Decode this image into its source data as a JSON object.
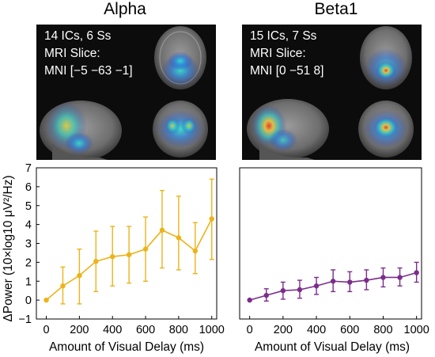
{
  "panels": [
    {
      "title": "Alpha",
      "info_lines": [
        "14 ICs, 6 Ss",
        "MRI Slice:",
        "MNI [−5 −63 −1]"
      ]
    },
    {
      "title": "Beta1",
      "info_lines": [
        "15 ICs, 7 Ss",
        "MRI Slice:",
        "MNI [0 −51 8]"
      ]
    }
  ],
  "chart_data": [
    {
      "type": "line",
      "title": "Alpha",
      "xlabel": "Amount of Visual Delay (ms)",
      "ylabel": "ΔPower (10×log10 μV²/Hz)",
      "xlim": [
        -60,
        1030
      ],
      "ylim": [
        -1,
        7
      ],
      "xticks": [
        0,
        200,
        400,
        600,
        800,
        1000
      ],
      "yticks": [
        -1,
        0,
        1,
        2,
        3,
        4,
        5,
        6,
        7
      ],
      "grid": false,
      "color": "#ecb31a",
      "x": [
        0,
        100,
        200,
        300,
        400,
        500,
        600,
        700,
        800,
        900,
        1000
      ],
      "y": [
        0.0,
        0.75,
        1.3,
        2.05,
        2.3,
        2.4,
        2.7,
        3.7,
        3.3,
        2.6,
        4.3
      ],
      "err_low": [
        0.0,
        0.95,
        1.5,
        1.6,
        1.55,
        1.5,
        1.7,
        2.0,
        1.7,
        1.2,
        2.15
      ],
      "err_high": [
        0.0,
        1.0,
        1.4,
        1.6,
        1.6,
        1.5,
        1.7,
        2.1,
        2.2,
        1.5,
        2.1
      ]
    },
    {
      "type": "line",
      "title": "Beta1",
      "xlabel": "Amount of Visual Delay (ms)",
      "ylabel": "",
      "xlim": [
        -60,
        1030
      ],
      "ylim": [
        -1,
        7
      ],
      "xticks": [
        0,
        200,
        400,
        600,
        800,
        1000
      ],
      "yticks": [],
      "grid": false,
      "color": "#7b2d8b",
      "x": [
        0,
        100,
        200,
        300,
        400,
        500,
        600,
        700,
        800,
        900,
        1000
      ],
      "y": [
        0.0,
        0.25,
        0.5,
        0.55,
        0.75,
        1.0,
        0.95,
        1.05,
        1.2,
        1.2,
        1.45
      ],
      "err_low": [
        0.0,
        0.3,
        0.45,
        0.45,
        0.45,
        0.55,
        0.5,
        0.5,
        0.5,
        0.45,
        0.5
      ],
      "err_high": [
        0.0,
        0.35,
        0.45,
        0.5,
        0.45,
        0.6,
        0.55,
        0.55,
        0.5,
        0.5,
        0.55
      ]
    }
  ]
}
